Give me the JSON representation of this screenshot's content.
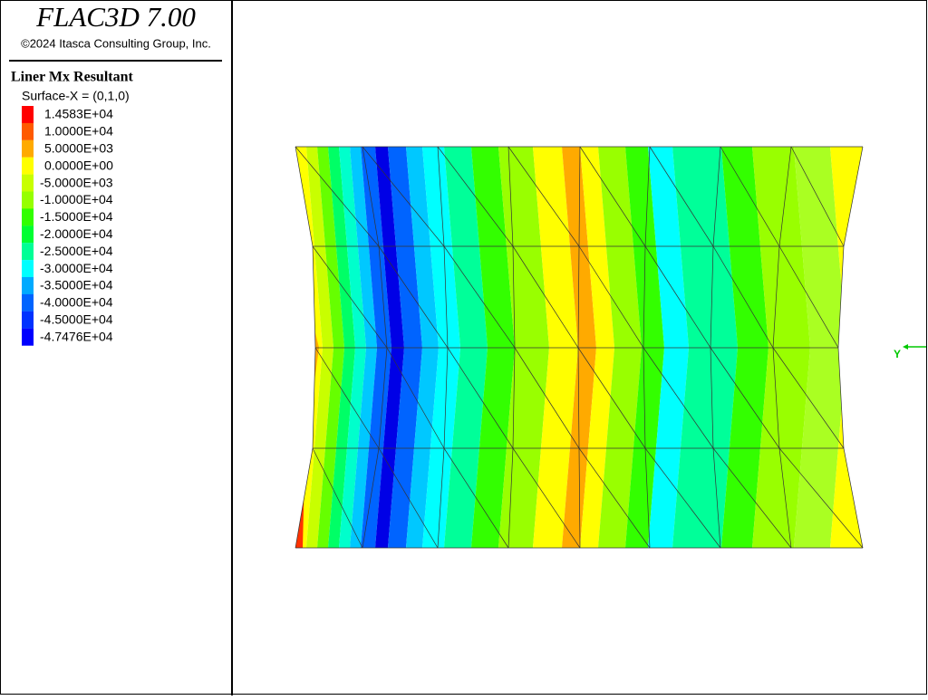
{
  "header": {
    "title": "FLAC3D 7.00",
    "copyright": "©2024 Itasca Consulting Group, Inc."
  },
  "legend": {
    "title": "Liner Mx Resultant",
    "subtitle": "Surface-X = (0,1,0)",
    "items": [
      {
        "label": "1.4583E+04",
        "color": "#ff0000"
      },
      {
        "label": "1.0000E+04",
        "color": "#ff5a00"
      },
      {
        "label": "5.0000E+03",
        "color": "#ffaa00"
      },
      {
        "label": "0.0000E+00",
        "color": "#ffff00"
      },
      {
        "label": "-5.0000E+03",
        "color": "#c8ff00"
      },
      {
        "label": "-1.0000E+04",
        "color": "#96ff00"
      },
      {
        "label": "-1.5000E+04",
        "color": "#32ff00"
      },
      {
        "label": "-2.0000E+04",
        "color": "#00ff32"
      },
      {
        "label": "-2.5000E+04",
        "color": "#00ff96"
      },
      {
        "label": "-3.0000E+04",
        "color": "#00ffff"
      },
      {
        "label": "-3.5000E+04",
        "color": "#00aaff"
      },
      {
        "label": "-4.0000E+04",
        "color": "#0064ff"
      },
      {
        "label": "-4.5000E+04",
        "color": "#0032ff"
      },
      {
        "label": "-4.7476E+04",
        "color": "#0000ff"
      }
    ]
  },
  "axis": {
    "label": "Y"
  }
}
